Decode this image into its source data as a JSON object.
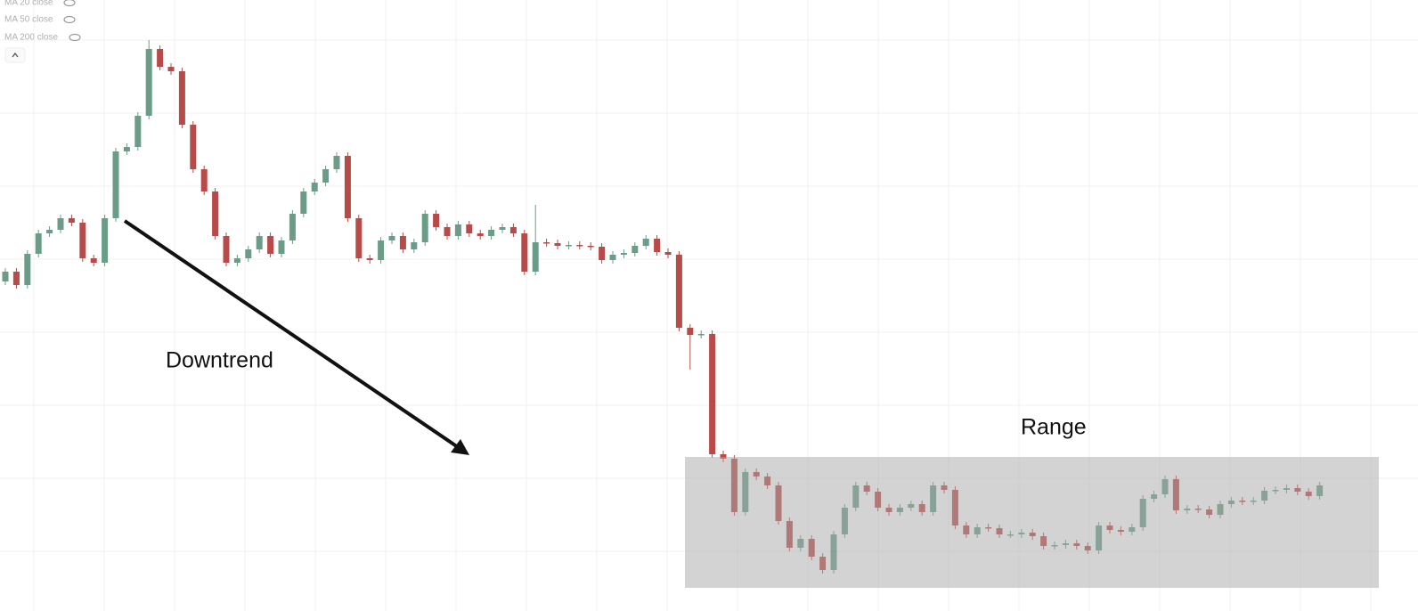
{
  "chart_data": {
    "type": "candlestick",
    "indicators": [
      "MA 20 close",
      "MA 50 close",
      "MA 200 close"
    ],
    "annotations": [
      "Downtrend",
      "Range"
    ],
    "up_color": "#6a9c88",
    "down_color": "#b84a48",
    "ylim": [
      0,
      686
    ],
    "open": [
      370,
      381,
      366,
      401,
      424,
      428,
      441,
      436,
      396,
      391,
      441,
      516,
      521,
      556,
      631,
      611,
      606,
      546,
      496,
      471,
      421,
      391,
      396,
      406,
      421,
      401,
      416,
      446,
      471,
      481,
      496,
      511,
      441,
      396,
      394,
      416,
      421,
      406,
      414,
      446,
      431,
      421,
      434,
      424,
      421,
      428,
      431,
      424,
      381,
      414,
      413,
      410,
      411,
      410,
      409,
      394,
      400,
      402,
      410,
      418,
      403,
      400,
      318,
      310,
      311,
      176,
      171,
      111,
      156,
      151,
      141,
      101,
      71,
      81,
      61,
      46,
      86,
      116,
      141,
      134,
      116,
      111,
      116,
      120,
      111,
      141,
      136,
      96,
      86,
      94,
      93,
      86,
      86,
      88,
      84,
      73,
      74,
      76,
      73,
      68,
      96,
      91,
      89,
      94,
      126,
      131,
      148,
      113,
      115,
      114,
      108,
      120,
      124,
      123,
      124,
      135,
      136,
      138,
      134,
      129
    ],
    "high": [
      385,
      385,
      405,
      428,
      432,
      445,
      445,
      440,
      400,
      445,
      520,
      525,
      560,
      641,
      635,
      615,
      610,
      550,
      500,
      475,
      425,
      400,
      410,
      425,
      425,
      420,
      450,
      475,
      485,
      500,
      515,
      515,
      445,
      400,
      420,
      425,
      425,
      418,
      450,
      450,
      435,
      438,
      438,
      428,
      432,
      435,
      435,
      428,
      456,
      418,
      417,
      415,
      415,
      414,
      413,
      404,
      406,
      414,
      422,
      422,
      407,
      404,
      322,
      315,
      315,
      180,
      175,
      160,
      160,
      155,
      145,
      105,
      85,
      85,
      65,
      90,
      120,
      145,
      145,
      138,
      120,
      120,
      124,
      124,
      145,
      145,
      140,
      100,
      98,
      98,
      97,
      90,
      92,
      92,
      88,
      78,
      80,
      80,
      77,
      100,
      100,
      95,
      98,
      130,
      135,
      152,
      152,
      119,
      119,
      118,
      124,
      128,
      128,
      128,
      139,
      140,
      142,
      142,
      138,
      145
    ],
    "low": [
      366,
      362,
      362,
      397,
      420,
      424,
      432,
      392,
      387,
      387,
      437,
      512,
      517,
      552,
      607,
      602,
      542,
      492,
      467,
      417,
      387,
      387,
      392,
      402,
      397,
      397,
      412,
      442,
      467,
      477,
      492,
      437,
      392,
      390,
      390,
      412,
      402,
      402,
      410,
      427,
      417,
      417,
      420,
      417,
      417,
      424,
      420,
      377,
      377,
      409,
      406,
      406,
      406,
      405,
      390,
      390,
      396,
      398,
      406,
      399,
      396,
      314,
      271,
      306,
      172,
      167,
      107,
      107,
      147,
      137,
      97,
      67,
      67,
      57,
      42,
      42,
      82,
      112,
      130,
      112,
      107,
      107,
      112,
      107,
      107,
      132,
      92,
      82,
      82,
      89,
      82,
      82,
      82,
      80,
      69,
      69,
      70,
      69,
      64,
      64,
      87,
      85,
      85,
      90,
      122,
      127,
      109,
      109,
      110,
      104,
      104,
      116,
      119,
      119,
      120,
      131,
      132,
      130,
      125,
      125
    ],
    "close": [
      381,
      366,
      401,
      424,
      428,
      441,
      436,
      396,
      391,
      441,
      516,
      521,
      556,
      631,
      611,
      606,
      546,
      496,
      471,
      421,
      391,
      396,
      406,
      421,
      401,
      416,
      446,
      471,
      481,
      496,
      511,
      441,
      396,
      394,
      416,
      421,
      406,
      414,
      446,
      431,
      421,
      434,
      424,
      421,
      428,
      431,
      424,
      381,
      414,
      413,
      410,
      411,
      410,
      409,
      394,
      400,
      402,
      410,
      418,
      403,
      400,
      318,
      310,
      311,
      176,
      171,
      111,
      156,
      151,
      141,
      101,
      71,
      81,
      61,
      46,
      86,
      116,
      141,
      134,
      116,
      111,
      116,
      120,
      111,
      141,
      136,
      96,
      86,
      94,
      93,
      86,
      86,
      88,
      84,
      73,
      74,
      76,
      73,
      68,
      96,
      91,
      89,
      94,
      126,
      131,
      148,
      113,
      115,
      114,
      108,
      120,
      124,
      123,
      124,
      135,
      136,
      138,
      134,
      129,
      141
    ]
  }
}
